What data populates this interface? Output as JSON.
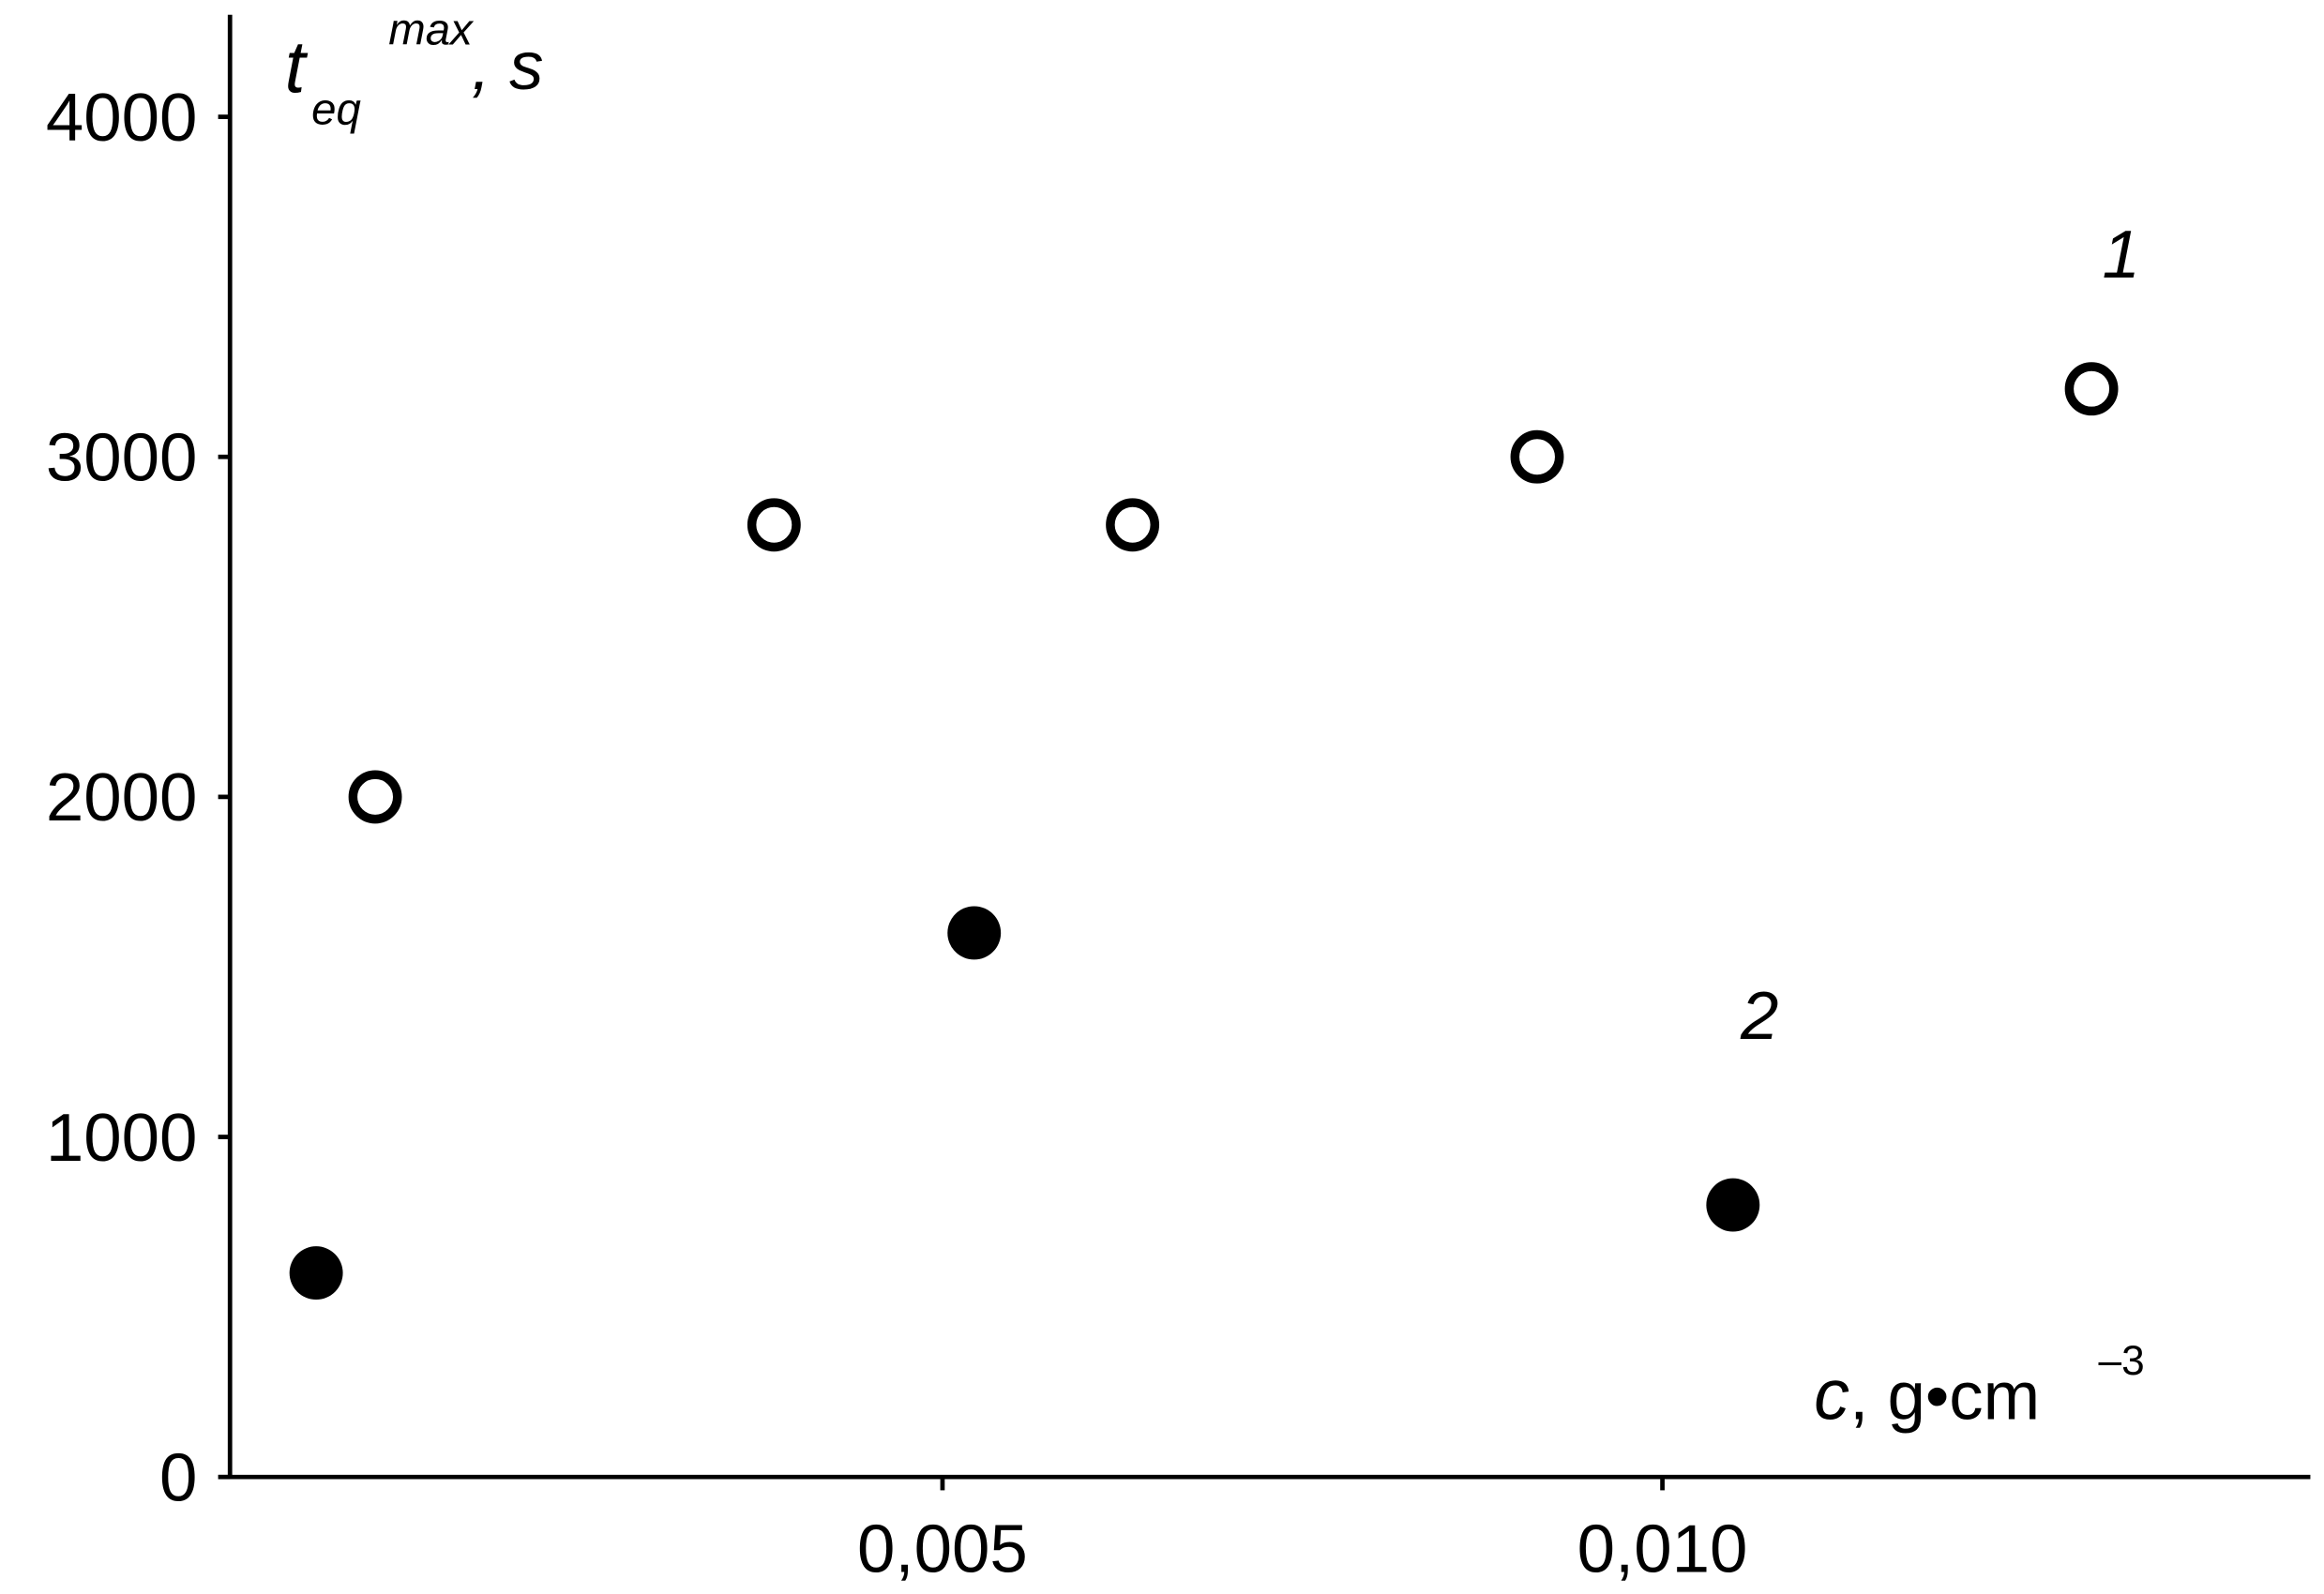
{
  "chart_data": {
    "type": "scatter",
    "y_label": {
      "base": "t",
      "sub": "eq",
      "sup": "max",
      "tail": ", s"
    },
    "x_label": {
      "base": "c",
      "tail": ", g•cm",
      "sup": "–3"
    },
    "xlim": [
      0,
      0.0145
    ],
    "ylim": [
      0,
      4300
    ],
    "xticks": [
      {
        "value": 0.005,
        "label": "0,005"
      },
      {
        "value": 0.01,
        "label": "0,010"
      }
    ],
    "yticks": [
      0,
      1000,
      2000,
      3000,
      4000
    ],
    "series": [
      {
        "name": "1",
        "color": "#000000",
        "marker": "open",
        "x": [
          0.00106,
          0.00383,
          0.00632,
          0.00913,
          0.01298
        ],
        "values": [
          2000,
          2800,
          2800,
          3000,
          3200
        ]
      },
      {
        "name": "2",
        "color": "#000000",
        "marker": "filled",
        "x": [
          0.00065,
          0.00522,
          0.01049
        ],
        "values": [
          600,
          1600,
          800
        ]
      }
    ]
  }
}
